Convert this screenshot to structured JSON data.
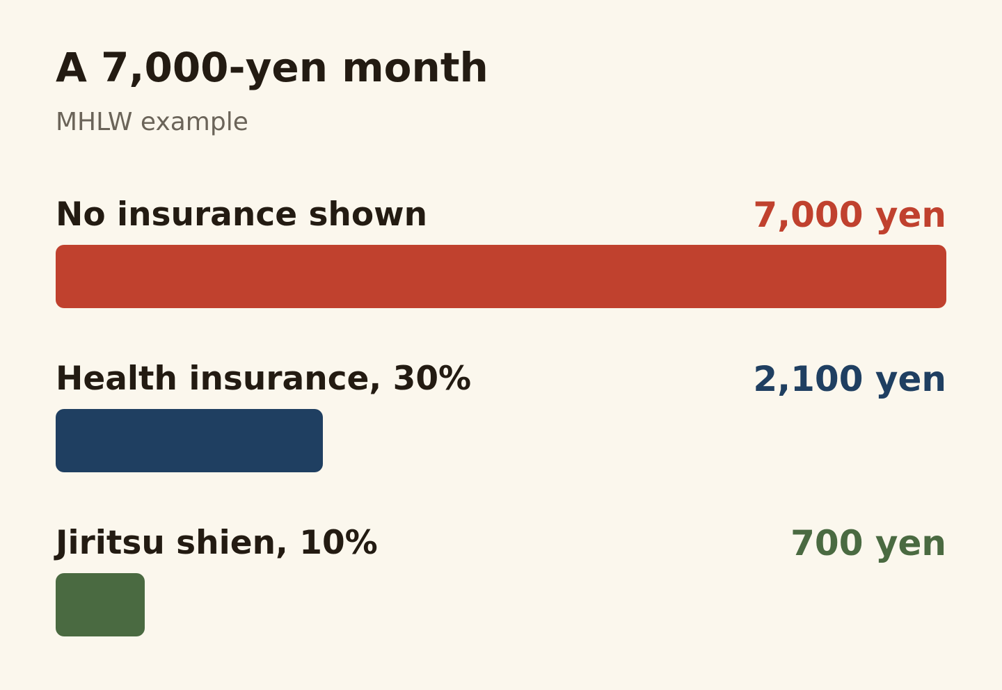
{
  "chart_data": {
    "type": "hbar",
    "title": "A 7,000-yen month",
    "subtitle": "MHLW example",
    "categories": [
      "No insurance shown",
      "Health insurance, 30%",
      "Jiritsu shien, 10%"
    ],
    "values": [
      7000,
      2100,
      700
    ],
    "value_labels": [
      "7,000 yen",
      "2,100 yen",
      "700 yen"
    ],
    "colors": [
      "#c0412e",
      "#1f3f61",
      "#4a6a41"
    ],
    "xlim": [
      0,
      7000
    ]
  }
}
